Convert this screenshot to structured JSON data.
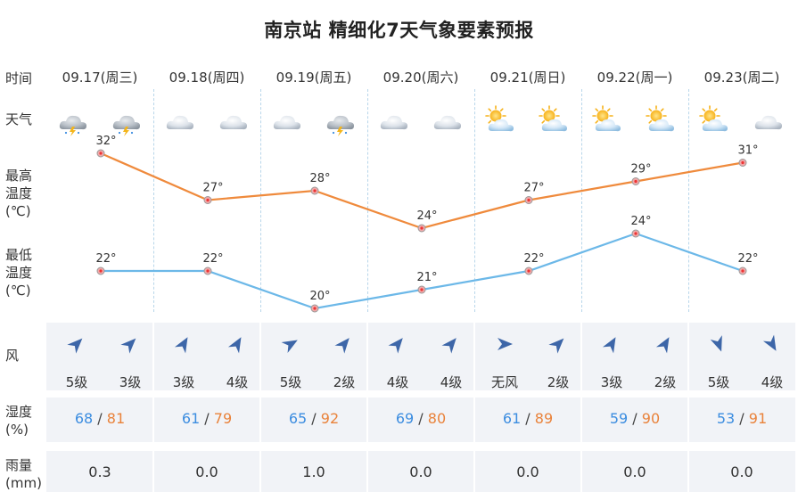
{
  "title": "南京站 精细化7天气象要素预报",
  "row_labels": {
    "time": "时间",
    "weather": "天气",
    "high": [
      "最高",
      "温度",
      "(℃)"
    ],
    "low": [
      "最低",
      "温度",
      "(℃)"
    ],
    "wind": "风",
    "humidity": [
      "湿度",
      "(%)"
    ],
    "rain": [
      "雨量",
      "(mm)"
    ]
  },
  "days": [
    {
      "date": "09.17(周三)",
      "icons": [
        "thunder-cloud-icon",
        "thunder-cloud-icon"
      ],
      "high": "32°",
      "low": "22°",
      "wind": [
        "5级",
        "3级"
      ],
      "hum_lo": "68",
      "hum_hi": "81",
      "rain": "0.3"
    },
    {
      "date": "09.18(周四)",
      "icons": [
        "cloud-icon",
        "cloud-icon"
      ],
      "high": "27°",
      "low": "22°",
      "wind": [
        "3级",
        "4级"
      ],
      "hum_lo": "61",
      "hum_hi": "79",
      "rain": "0.0"
    },
    {
      "date": "09.19(周五)",
      "icons": [
        "cloud-icon",
        "thunder-cloud-icon"
      ],
      "high": "28°",
      "low": "20°",
      "wind": [
        "5级",
        "2级"
      ],
      "hum_lo": "65",
      "hum_hi": "92",
      "rain": "1.0"
    },
    {
      "date": "09.20(周六)",
      "icons": [
        "cloud-icon",
        "cloud-icon"
      ],
      "high": "24°",
      "low": "21°",
      "wind": [
        "4级",
        "4级"
      ],
      "hum_lo": "69",
      "hum_hi": "80",
      "rain": "0.0"
    },
    {
      "date": "09.21(周日)",
      "icons": [
        "partly-cloudy-icon",
        "partly-cloudy-icon"
      ],
      "high": "27°",
      "low": "22°",
      "wind": [
        "无风",
        "2级"
      ],
      "hum_lo": "61",
      "hum_hi": "89",
      "rain": "0.0"
    },
    {
      "date": "09.22(周一)",
      "icons": [
        "partly-cloudy-icon",
        "partly-cloudy-icon"
      ],
      "high": "29°",
      "low": "24°",
      "wind": [
        "3级",
        "2级"
      ],
      "hum_lo": "59",
      "hum_hi": "90",
      "rain": "0.0"
    },
    {
      "date": "09.23(周二)",
      "icons": [
        "partly-cloudy-icon",
        "cloud-icon"
      ],
      "high": "31°",
      "low": "22°",
      "wind": [
        "5级",
        "4级"
      ],
      "hum_lo": "53",
      "hum_hi": "91",
      "rain": "0.0"
    }
  ],
  "chart_data": {
    "type": "line",
    "x": [
      "09.17",
      "09.18",
      "09.19",
      "09.20",
      "09.21",
      "09.22",
      "09.23"
    ],
    "series": [
      {
        "values": [
          32,
          27,
          28,
          24,
          27,
          29,
          31
        ],
        "color": "#ef8a3c"
      },
      {
        "values": [
          22,
          22,
          20,
          21,
          22,
          24,
          22
        ],
        "color": "#6cb8e8"
      }
    ]
  },
  "humidity_separator": "/",
  "colors": {
    "high_line": "#ef8a3c",
    "low_line": "#6cb8e8",
    "humidity_low": "#3c8de0",
    "humidity_high": "#e9823a",
    "band_bg": "#f1f3f7",
    "wind_arrow": "#3d66a8"
  }
}
